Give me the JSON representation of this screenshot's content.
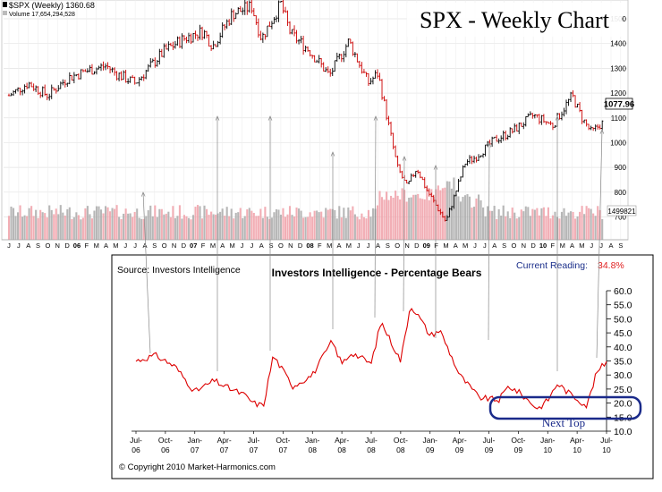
{
  "top_panel": {
    "symbol_label": "$SPX (Weekly) 1360.68",
    "volume_label": "Volume 17,654,294,528",
    "title": "SPX - Weekly Chart",
    "last_price": "1077.96",
    "last_volume": "1499821",
    "x_labels": [
      "J",
      "J",
      "A",
      "S",
      "O",
      "N",
      "D",
      "06",
      "F",
      "M",
      "A",
      "M",
      "J",
      "J",
      "A",
      "S",
      "O",
      "N",
      "D",
      "07",
      "F",
      "M",
      "A",
      "M",
      "J",
      "J",
      "A",
      "S",
      "O",
      "N",
      "D",
      "08",
      "F",
      "M",
      "A",
      "M",
      "J",
      "J",
      "A",
      "S",
      "O",
      "N",
      "D",
      "09",
      "F",
      "M",
      "A",
      "M",
      "J",
      "J",
      "A",
      "S",
      "O",
      "N",
      "D",
      "10",
      "F",
      "M",
      "A",
      "M",
      "J",
      "J",
      "A",
      "S"
    ],
    "y_ticks": [
      "1500",
      "1400",
      "1300",
      "1200",
      "1100",
      "1000",
      "900",
      "800",
      "700"
    ]
  },
  "bottom_panel": {
    "source": "Source: Investors Intelligence",
    "title": "Investors Intelligence - Percentage Bears",
    "current_reading_label": "Current Reading:",
    "current_reading_value": "34.8%",
    "annotation": "Next Top",
    "copyright": "© Copyright 2010 Market-Harmonics.com",
    "x_ticks": [
      [
        "Jul-",
        "06"
      ],
      [
        "Oct-",
        "06"
      ],
      [
        "Jan-",
        "07"
      ],
      [
        "Apr-",
        "07"
      ],
      [
        "Jul-",
        "07"
      ],
      [
        "Oct-",
        "07"
      ],
      [
        "Jan-",
        "08"
      ],
      [
        "Apr-",
        "08"
      ],
      [
        "Jul-",
        "08"
      ],
      [
        "Oct-",
        "08"
      ],
      [
        "Jan-",
        "09"
      ],
      [
        "Apr-",
        "09"
      ],
      [
        "Jul-",
        "09"
      ],
      [
        "Oct-",
        "09"
      ],
      [
        "Jan-",
        "10"
      ],
      [
        "Apr-",
        "10"
      ],
      [
        "Jul-",
        "10"
      ]
    ],
    "y_ticks": [
      "60.0",
      "55.0",
      "50.0",
      "45.0",
      "40.0",
      "35.0",
      "30.0",
      "25.0",
      "20.0",
      "15.0",
      "10.0"
    ]
  },
  "chart_data": [
    {
      "type": "line",
      "title": "SPX - Weekly Chart",
      "y_axis": "price",
      "ylim": [
        650,
        1600
      ],
      "x": [
        "2005-06",
        "2005-08",
        "2005-10",
        "2005-12",
        "2006-02",
        "2006-04",
        "2006-05",
        "2006-07",
        "2006-10",
        "2006-12",
        "2007-02",
        "2007-03",
        "2007-05",
        "2007-07",
        "2007-08",
        "2007-10",
        "2007-11",
        "2008-01",
        "2008-03",
        "2008-05",
        "2008-07",
        "2008-08",
        "2008-10",
        "2008-11",
        "2008-12",
        "2009-01",
        "2009-03",
        "2009-05",
        "2009-06",
        "2009-08",
        "2009-10",
        "2009-12",
        "2010-02",
        "2010-04",
        "2010-05",
        "2010-06",
        "2010-07"
      ],
      "series": [
        {
          "values": [
            1190,
            1240,
            1190,
            1260,
            1290,
            1310,
            1280,
            1240,
            1370,
            1420,
            1450,
            1390,
            1520,
            1550,
            1420,
            1560,
            1440,
            1370,
            1270,
            1410,
            1240,
            1280,
            900,
            820,
            900,
            810,
            680,
            920,
            940,
            1010,
            1050,
            1110,
            1070,
            1190,
            1100,
            1040,
            1078
          ]
        }
      ],
      "grid": true
    },
    {
      "type": "bar",
      "y_axis": "volume",
      "note_values": "relative weekly volume, tallest near Oct-2008",
      "series": [
        {
          "values": []
        }
      ]
    },
    {
      "type": "line",
      "title": "Investors Intelligence - Percentage Bears",
      "ylim": [
        10,
        60
      ],
      "y_ticks": [
        60,
        55,
        50,
        45,
        40,
        35,
        30,
        25,
        20,
        15,
        10
      ],
      "x": [
        "2006-07",
        "2006-09",
        "2006-11",
        "2007-01",
        "2007-03",
        "2007-04",
        "2007-06",
        "2007-07",
        "2007-08",
        "2007-09",
        "2007-11",
        "2008-01",
        "2008-03",
        "2008-04",
        "2008-05",
        "2008-07",
        "2008-08",
        "2008-09",
        "2008-10",
        "2008-11",
        "2008-12",
        "2009-01",
        "2009-02",
        "2009-03",
        "2009-04",
        "2009-06",
        "2009-08",
        "2009-09",
        "2009-10",
        "2009-12",
        "2010-01",
        "2010-02",
        "2010-03",
        "2010-05",
        "2010-06",
        "2010-07"
      ],
      "series": [
        {
          "name": "Percentage Bears",
          "values": [
            35,
            37,
            33,
            24,
            28,
            26,
            23,
            20,
            19,
            37,
            26,
            30,
            42,
            34,
            38,
            34,
            49,
            42,
            35,
            55,
            50,
            44,
            46,
            38,
            30,
            22,
            21,
            26,
            24,
            18,
            21,
            27,
            24,
            19,
            31,
            34.8
          ]
        }
      ],
      "current_reading": 34.8
    }
  ]
}
